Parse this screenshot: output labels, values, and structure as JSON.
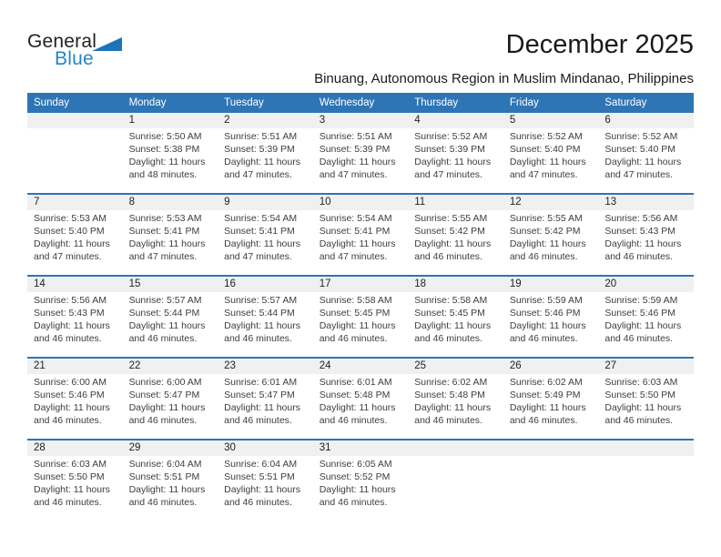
{
  "logo": {
    "part1": "General",
    "part2": "Blue",
    "triangle_color": "#1c75bb",
    "blue_text_color": "#2386c9"
  },
  "title": "December 2025",
  "subtitle": "Binuang, Autonomous Region in Muslim Mindanao, Philippines",
  "colors": {
    "header_bg": "#2e75b6",
    "week_separator": "#2e75b6",
    "day_band_bg": "#f0f0f0",
    "header_text": "#ffffff"
  },
  "weekday_headers": [
    "Sunday",
    "Monday",
    "Tuesday",
    "Wednesday",
    "Thursday",
    "Friday",
    "Saturday"
  ],
  "weeks": [
    [
      null,
      {
        "num": "1",
        "sunrise": "Sunrise: 5:50 AM",
        "sunset": "Sunset: 5:38 PM",
        "daylight": "Daylight: 11 hours and 48 minutes."
      },
      {
        "num": "2",
        "sunrise": "Sunrise: 5:51 AM",
        "sunset": "Sunset: 5:39 PM",
        "daylight": "Daylight: 11 hours and 47 minutes."
      },
      {
        "num": "3",
        "sunrise": "Sunrise: 5:51 AM",
        "sunset": "Sunset: 5:39 PM",
        "daylight": "Daylight: 11 hours and 47 minutes."
      },
      {
        "num": "4",
        "sunrise": "Sunrise: 5:52 AM",
        "sunset": "Sunset: 5:39 PM",
        "daylight": "Daylight: 11 hours and 47 minutes."
      },
      {
        "num": "5",
        "sunrise": "Sunrise: 5:52 AM",
        "sunset": "Sunset: 5:40 PM",
        "daylight": "Daylight: 11 hours and 47 minutes."
      },
      {
        "num": "6",
        "sunrise": "Sunrise: 5:52 AM",
        "sunset": "Sunset: 5:40 PM",
        "daylight": "Daylight: 11 hours and 47 minutes."
      }
    ],
    [
      {
        "num": "7",
        "sunrise": "Sunrise: 5:53 AM",
        "sunset": "Sunset: 5:40 PM",
        "daylight": "Daylight: 11 hours and 47 minutes."
      },
      {
        "num": "8",
        "sunrise": "Sunrise: 5:53 AM",
        "sunset": "Sunset: 5:41 PM",
        "daylight": "Daylight: 11 hours and 47 minutes."
      },
      {
        "num": "9",
        "sunrise": "Sunrise: 5:54 AM",
        "sunset": "Sunset: 5:41 PM",
        "daylight": "Daylight: 11 hours and 47 minutes."
      },
      {
        "num": "10",
        "sunrise": "Sunrise: 5:54 AM",
        "sunset": "Sunset: 5:41 PM",
        "daylight": "Daylight: 11 hours and 47 minutes."
      },
      {
        "num": "11",
        "sunrise": "Sunrise: 5:55 AM",
        "sunset": "Sunset: 5:42 PM",
        "daylight": "Daylight: 11 hours and 46 minutes."
      },
      {
        "num": "12",
        "sunrise": "Sunrise: 5:55 AM",
        "sunset": "Sunset: 5:42 PM",
        "daylight": "Daylight: 11 hours and 46 minutes."
      },
      {
        "num": "13",
        "sunrise": "Sunrise: 5:56 AM",
        "sunset": "Sunset: 5:43 PM",
        "daylight": "Daylight: 11 hours and 46 minutes."
      }
    ],
    [
      {
        "num": "14",
        "sunrise": "Sunrise: 5:56 AM",
        "sunset": "Sunset: 5:43 PM",
        "daylight": "Daylight: 11 hours and 46 minutes."
      },
      {
        "num": "15",
        "sunrise": "Sunrise: 5:57 AM",
        "sunset": "Sunset: 5:44 PM",
        "daylight": "Daylight: 11 hours and 46 minutes."
      },
      {
        "num": "16",
        "sunrise": "Sunrise: 5:57 AM",
        "sunset": "Sunset: 5:44 PM",
        "daylight": "Daylight: 11 hours and 46 minutes."
      },
      {
        "num": "17",
        "sunrise": "Sunrise: 5:58 AM",
        "sunset": "Sunset: 5:45 PM",
        "daylight": "Daylight: 11 hours and 46 minutes."
      },
      {
        "num": "18",
        "sunrise": "Sunrise: 5:58 AM",
        "sunset": "Sunset: 5:45 PM",
        "daylight": "Daylight: 11 hours and 46 minutes."
      },
      {
        "num": "19",
        "sunrise": "Sunrise: 5:59 AM",
        "sunset": "Sunset: 5:46 PM",
        "daylight": "Daylight: 11 hours and 46 minutes."
      },
      {
        "num": "20",
        "sunrise": "Sunrise: 5:59 AM",
        "sunset": "Sunset: 5:46 PM",
        "daylight": "Daylight: 11 hours and 46 minutes."
      }
    ],
    [
      {
        "num": "21",
        "sunrise": "Sunrise: 6:00 AM",
        "sunset": "Sunset: 5:46 PM",
        "daylight": "Daylight: 11 hours and 46 minutes."
      },
      {
        "num": "22",
        "sunrise": "Sunrise: 6:00 AM",
        "sunset": "Sunset: 5:47 PM",
        "daylight": "Daylight: 11 hours and 46 minutes."
      },
      {
        "num": "23",
        "sunrise": "Sunrise: 6:01 AM",
        "sunset": "Sunset: 5:47 PM",
        "daylight": "Daylight: 11 hours and 46 minutes."
      },
      {
        "num": "24",
        "sunrise": "Sunrise: 6:01 AM",
        "sunset": "Sunset: 5:48 PM",
        "daylight": "Daylight: 11 hours and 46 minutes."
      },
      {
        "num": "25",
        "sunrise": "Sunrise: 6:02 AM",
        "sunset": "Sunset: 5:48 PM",
        "daylight": "Daylight: 11 hours and 46 minutes."
      },
      {
        "num": "26",
        "sunrise": "Sunrise: 6:02 AM",
        "sunset": "Sunset: 5:49 PM",
        "daylight": "Daylight: 11 hours and 46 minutes."
      },
      {
        "num": "27",
        "sunrise": "Sunrise: 6:03 AM",
        "sunset": "Sunset: 5:50 PM",
        "daylight": "Daylight: 11 hours and 46 minutes."
      }
    ],
    [
      {
        "num": "28",
        "sunrise": "Sunrise: 6:03 AM",
        "sunset": "Sunset: 5:50 PM",
        "daylight": "Daylight: 11 hours and 46 minutes."
      },
      {
        "num": "29",
        "sunrise": "Sunrise: 6:04 AM",
        "sunset": "Sunset: 5:51 PM",
        "daylight": "Daylight: 11 hours and 46 minutes."
      },
      {
        "num": "30",
        "sunrise": "Sunrise: 6:04 AM",
        "sunset": "Sunset: 5:51 PM",
        "daylight": "Daylight: 11 hours and 46 minutes."
      },
      {
        "num": "31",
        "sunrise": "Sunrise: 6:05 AM",
        "sunset": "Sunset: 5:52 PM",
        "daylight": "Daylight: 11 hours and 46 minutes."
      },
      null,
      null,
      null
    ]
  ]
}
